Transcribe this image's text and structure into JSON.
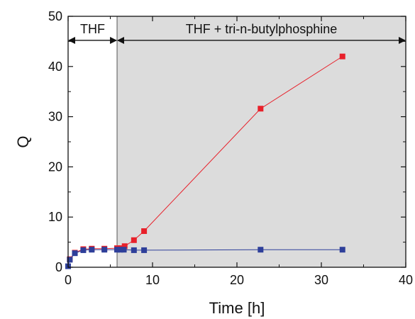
{
  "chart_data": {
    "type": "scatter",
    "xlabel": "Time [h]",
    "ylabel": "Q",
    "xlim": [
      0,
      40
    ],
    "ylim": [
      0,
      50
    ],
    "x_ticks": [
      0,
      10,
      20,
      30,
      40
    ],
    "y_ticks": [
      0,
      10,
      20,
      30,
      40,
      50
    ],
    "grid": false,
    "shaded_region": {
      "x_start": 5.8,
      "x_end": 40,
      "color": "#dcdcdc"
    },
    "regions": [
      {
        "label": "THF",
        "x_start": 0,
        "x_end": 5.8,
        "y": 45.2
      },
      {
        "label": "THF + tri-n-butylphosphine",
        "x_start": 5.8,
        "x_end": 40,
        "y": 45.2
      }
    ],
    "series": [
      {
        "color": "#e8202a",
        "marker": "square",
        "points": [
          [
            0.2,
            1.6
          ],
          [
            0.8,
            2.9
          ],
          [
            1.8,
            3.6
          ],
          [
            2.8,
            3.7
          ],
          [
            4.3,
            3.7
          ],
          [
            5.8,
            3.8
          ],
          [
            6.3,
            3.8
          ],
          [
            6.7,
            4.2
          ],
          [
            7.8,
            5.4
          ],
          [
            9.0,
            7.2
          ],
          [
            22.8,
            31.6
          ],
          [
            32.5,
            42.0
          ]
        ]
      },
      {
        "color": "#2e3f9a",
        "marker": "square",
        "points": [
          [
            0.0,
            0.2
          ],
          [
            0.2,
            1.5
          ],
          [
            0.8,
            2.8
          ],
          [
            1.8,
            3.4
          ],
          [
            2.8,
            3.5
          ],
          [
            4.3,
            3.5
          ],
          [
            5.8,
            3.5
          ],
          [
            6.2,
            3.5
          ],
          [
            6.6,
            3.5
          ],
          [
            7.8,
            3.4
          ],
          [
            9.0,
            3.4
          ],
          [
            22.8,
            3.5
          ],
          [
            32.5,
            3.5
          ]
        ]
      }
    ]
  }
}
